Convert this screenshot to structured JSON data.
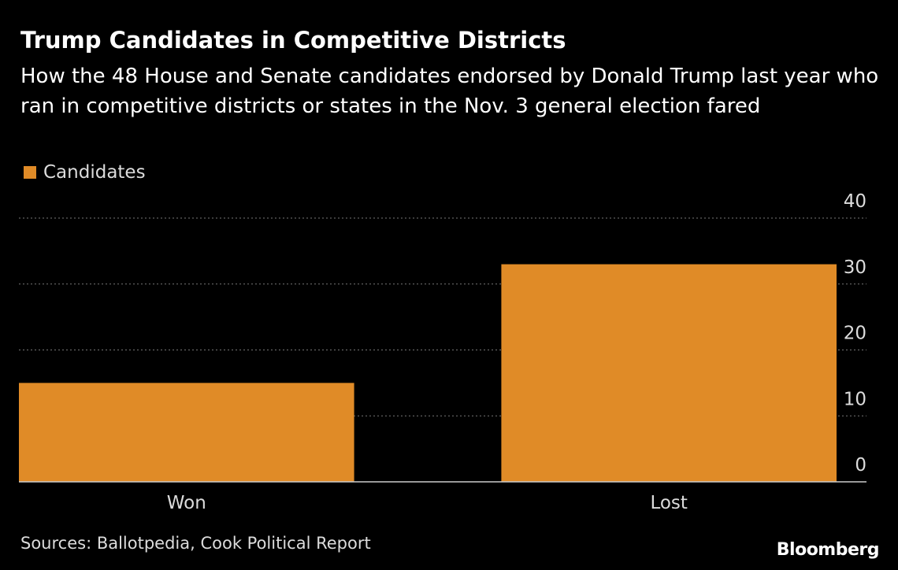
{
  "title": "Trump Candidates in Competitive Districts",
  "subtitle": "How the 48 House and Senate candidates endorsed by Donald Trump last year who ran in competitive districts or states in the Nov. 3 general election fared",
  "source": "Sources: Ballotpedia, Cook Political Report",
  "brand": "Bloomberg",
  "colors": {
    "bar": "#e08b27",
    "background": "#000000",
    "grid": "#777777"
  },
  "chart_data": {
    "type": "bar",
    "categories": [
      "Won",
      "Lost"
    ],
    "series": [
      {
        "name": "Candidates",
        "values": [
          15,
          33
        ]
      }
    ],
    "ylim": [
      0,
      40
    ],
    "yticks": [
      0,
      10,
      20,
      30,
      40
    ],
    "y_axis_side": "right",
    "grid": true,
    "legend_position": "top-left"
  }
}
